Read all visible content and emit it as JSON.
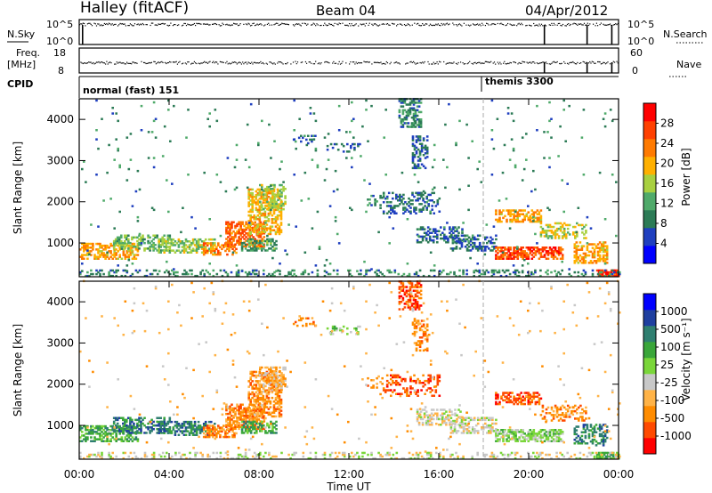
{
  "header": {
    "station": "Halley (fitACF)",
    "beam": "Beam 04",
    "date": "04/Apr/2012"
  },
  "top_panels": {
    "nsky_label": "N.Sky",
    "nsky_top_tick": "10^5",
    "nsky_bottom_tick": "10^0",
    "nsearch_label": "N.Search",
    "nsearch_top_tick": "10^5",
    "nsearch_bottom_tick": "10^0",
    "freq_label_1": "Freq.",
    "freq_label_2": "[MHz]",
    "freq_top_tick": "18",
    "freq_bottom_tick": "8",
    "nave_label": "Nave",
    "nave_top_tick": "60",
    "nave_bottom_tick": "0",
    "cpid_label": "CPID",
    "cpid_modes": [
      {
        "text": "normal (fast) 151",
        "start_hour": 0.0
      },
      {
        "text": "themis 3300",
        "start_hour": 18.0
      }
    ]
  },
  "colors": {
    "power_scale": [
      "#0000ff",
      "#1f3fbf",
      "#2c7b56",
      "#4faa6a",
      "#a8d040",
      "#ffb000",
      "#ff7a00",
      "#ff4000",
      "#ff0000"
    ],
    "velocity_scale": [
      "#ff0000",
      "#ff4a00",
      "#ff8c00",
      "#ffb347",
      "#c8c8c8",
      "#7ad63a",
      "#3aa63a",
      "#2f7f70",
      "#1f3f9f",
      "#0000ff"
    ],
    "frame": "#000000",
    "ground_scatter": "#9a9a9a"
  },
  "chart_data": [
    {
      "type": "heatmap",
      "name": "Power",
      "ylabel": "Slant Range [km]",
      "xlabel": "Time UT",
      "colorbar_label": "Power [dB]",
      "colorbar_ticks": [
        "4",
        "8",
        "12",
        "16",
        "20",
        "24",
        "28"
      ],
      "clim": [
        0,
        30
      ],
      "xlim": [
        0,
        24
      ],
      "ylim": [
        180,
        4500
      ],
      "x_ticks": [
        "00:00",
        "04:00",
        "08:00",
        "12:00",
        "16:00",
        "20:00",
        "00:00"
      ],
      "y_ticks": [
        "1000",
        "2000",
        "3000",
        "4000"
      ],
      "marker_hour": 18.0,
      "patches": [
        {
          "t": [
            0.0,
            2.6
          ],
          "r": [
            600,
            1000
          ],
          "v": 20,
          "d": 0.55
        },
        {
          "t": [
            1.5,
            4.0
          ],
          "r": [
            800,
            1200
          ],
          "v": 12,
          "d": 0.45
        },
        {
          "t": [
            3.5,
            6.0
          ],
          "r": [
            750,
            1100
          ],
          "v": 14,
          "d": 0.55
        },
        {
          "t": [
            5.5,
            7.0
          ],
          "r": [
            700,
            1000
          ],
          "v": 22,
          "d": 0.55
        },
        {
          "t": [
            6.5,
            8.2
          ],
          "r": [
            900,
            1500
          ],
          "v": 24,
          "d": 0.6
        },
        {
          "t": [
            7.5,
            9.0
          ],
          "r": [
            1200,
            2300
          ],
          "v": 18,
          "d": 0.55
        },
        {
          "t": [
            8.0,
            9.2
          ],
          "r": [
            1800,
            2400
          ],
          "v": 14,
          "d": 0.45
        },
        {
          "t": [
            7.2,
            8.8
          ],
          "r": [
            800,
            1100
          ],
          "v": 10,
          "d": 0.45
        },
        {
          "t": [
            9.5,
            10.5
          ],
          "r": [
            3400,
            3600
          ],
          "v": 6,
          "d": 0.3
        },
        {
          "t": [
            11.0,
            12.5
          ],
          "r": [
            3200,
            3400
          ],
          "v": 6,
          "d": 0.25
        },
        {
          "t": [
            12.8,
            13.5
          ],
          "r": [
            1900,
            2200
          ],
          "v": 8,
          "d": 0.25
        },
        {
          "t": [
            14.2,
            15.2
          ],
          "r": [
            3800,
            4500
          ],
          "v": 8,
          "d": 0.5
        },
        {
          "t": [
            14.8,
            15.5
          ],
          "r": [
            2800,
            3600
          ],
          "v": 6,
          "d": 0.4
        },
        {
          "t": [
            13.5,
            16.0
          ],
          "r": [
            1700,
            2200
          ],
          "v": 6,
          "d": 0.3
        },
        {
          "t": [
            15.0,
            17.0
          ],
          "r": [
            1000,
            1400
          ],
          "v": 6,
          "d": 0.45
        },
        {
          "t": [
            16.5,
            18.5
          ],
          "r": [
            800,
            1200
          ],
          "v": 6,
          "d": 0.45
        },
        {
          "t": [
            18.5,
            20.5
          ],
          "r": [
            1500,
            1800
          ],
          "v": 20,
          "d": 0.5
        },
        {
          "t": [
            18.5,
            21.5
          ],
          "r": [
            600,
            900
          ],
          "v": 26,
          "d": 0.65
        },
        {
          "t": [
            20.5,
            22.5
          ],
          "r": [
            1100,
            1500
          ],
          "v": 16,
          "d": 0.35
        },
        {
          "t": [
            22.0,
            23.5
          ],
          "r": [
            500,
            1000
          ],
          "v": 20,
          "d": 0.45
        },
        {
          "t": [
            23.0,
            24.0
          ],
          "r": [
            180,
            350
          ],
          "v": 28,
          "d": 0.8
        },
        {
          "t": [
            0.0,
            24.0
          ],
          "r": [
            180,
            320
          ],
          "v": 8,
          "d": 0.25
        },
        {
          "t": [
            0.0,
            24.0
          ],
          "r": [
            300,
            4500
          ],
          "v": 8,
          "d": 0.012
        }
      ]
    },
    {
      "type": "heatmap",
      "name": "Velocity",
      "ylabel": "Slant Range [km]",
      "xlabel": "Time UT",
      "colorbar_label": "Velocity [m s⁻¹]",
      "colorbar_ticks": [
        "-1000",
        "-500",
        "-100",
        "-25",
        "25",
        "100",
        "500",
        "1000"
      ],
      "xlim": [
        0,
        24
      ],
      "ylim": [
        180,
        4500
      ],
      "x_ticks": [
        "00:00",
        "04:00",
        "08:00",
        "12:00",
        "16:00",
        "20:00",
        "00:00"
      ],
      "y_ticks": [
        "1000",
        "2000",
        "3000",
        "4000"
      ],
      "marker_hour": 18.0,
      "patches": [
        {
          "t": [
            0.0,
            2.6
          ],
          "r": [
            600,
            1000
          ],
          "v": 6,
          "d": 0.55
        },
        {
          "t": [
            1.5,
            4.0
          ],
          "r": [
            800,
            1200
          ],
          "v": 7,
          "d": 0.45
        },
        {
          "t": [
            3.5,
            6.0
          ],
          "r": [
            750,
            1100
          ],
          "v": 7,
          "d": 0.5
        },
        {
          "t": [
            5.5,
            7.0
          ],
          "r": [
            700,
            1000
          ],
          "v": 2,
          "d": 0.55
        },
        {
          "t": [
            6.5,
            8.2
          ],
          "r": [
            900,
            1500
          ],
          "v": 2,
          "d": 0.6
        },
        {
          "t": [
            7.5,
            9.0
          ],
          "r": [
            1200,
            2300
          ],
          "v": 2,
          "d": 0.55
        },
        {
          "t": [
            8.0,
            9.2
          ],
          "r": [
            1800,
            2400
          ],
          "v": 3,
          "d": 0.45
        },
        {
          "t": [
            7.2,
            8.8
          ],
          "r": [
            800,
            1100
          ],
          "v": 6,
          "d": 0.45
        },
        {
          "t": [
            9.5,
            10.5
          ],
          "r": [
            3400,
            3600
          ],
          "v": 2,
          "d": 0.3
        },
        {
          "t": [
            11.0,
            12.5
          ],
          "r": [
            3200,
            3400
          ],
          "v": 5,
          "d": 0.25
        },
        {
          "t": [
            12.8,
            13.5
          ],
          "r": [
            1900,
            2200
          ],
          "v": 2,
          "d": 0.25
        },
        {
          "t": [
            14.2,
            15.2
          ],
          "r": [
            3800,
            4500
          ],
          "v": 1,
          "d": 0.5
        },
        {
          "t": [
            14.8,
            15.5
          ],
          "r": [
            2800,
            3600
          ],
          "v": 2,
          "d": 0.4
        },
        {
          "t": [
            13.5,
            16.0
          ],
          "r": [
            1700,
            2200
          ],
          "v": 1,
          "d": 0.3
        },
        {
          "t": [
            15.0,
            17.0
          ],
          "r": [
            1000,
            1400
          ],
          "v": 4,
          "d": 0.45
        },
        {
          "t": [
            16.5,
            18.5
          ],
          "r": [
            800,
            1200
          ],
          "v": 4,
          "d": 0.45
        },
        {
          "t": [
            18.5,
            20.5
          ],
          "r": [
            1500,
            1800
          ],
          "v": 1,
          "d": 0.5
        },
        {
          "t": [
            18.5,
            21.5
          ],
          "r": [
            600,
            900
          ],
          "v": 5,
          "d": 0.65
        },
        {
          "t": [
            20.5,
            22.5
          ],
          "r": [
            1100,
            1500
          ],
          "v": 2,
          "d": 0.35
        },
        {
          "t": [
            22.0,
            23.5
          ],
          "r": [
            500,
            1000
          ],
          "v": 7,
          "d": 0.45
        },
        {
          "t": [
            23.0,
            24.0
          ],
          "r": [
            180,
            350
          ],
          "v": 6,
          "d": 0.8
        },
        {
          "t": [
            0.0,
            24.0
          ],
          "r": [
            180,
            320
          ],
          "v": 4,
          "d": 0.25
        },
        {
          "t": [
            0.0,
            24.0
          ],
          "r": [
            300,
            4500
          ],
          "v": 3,
          "d": 0.012
        }
      ]
    }
  ]
}
